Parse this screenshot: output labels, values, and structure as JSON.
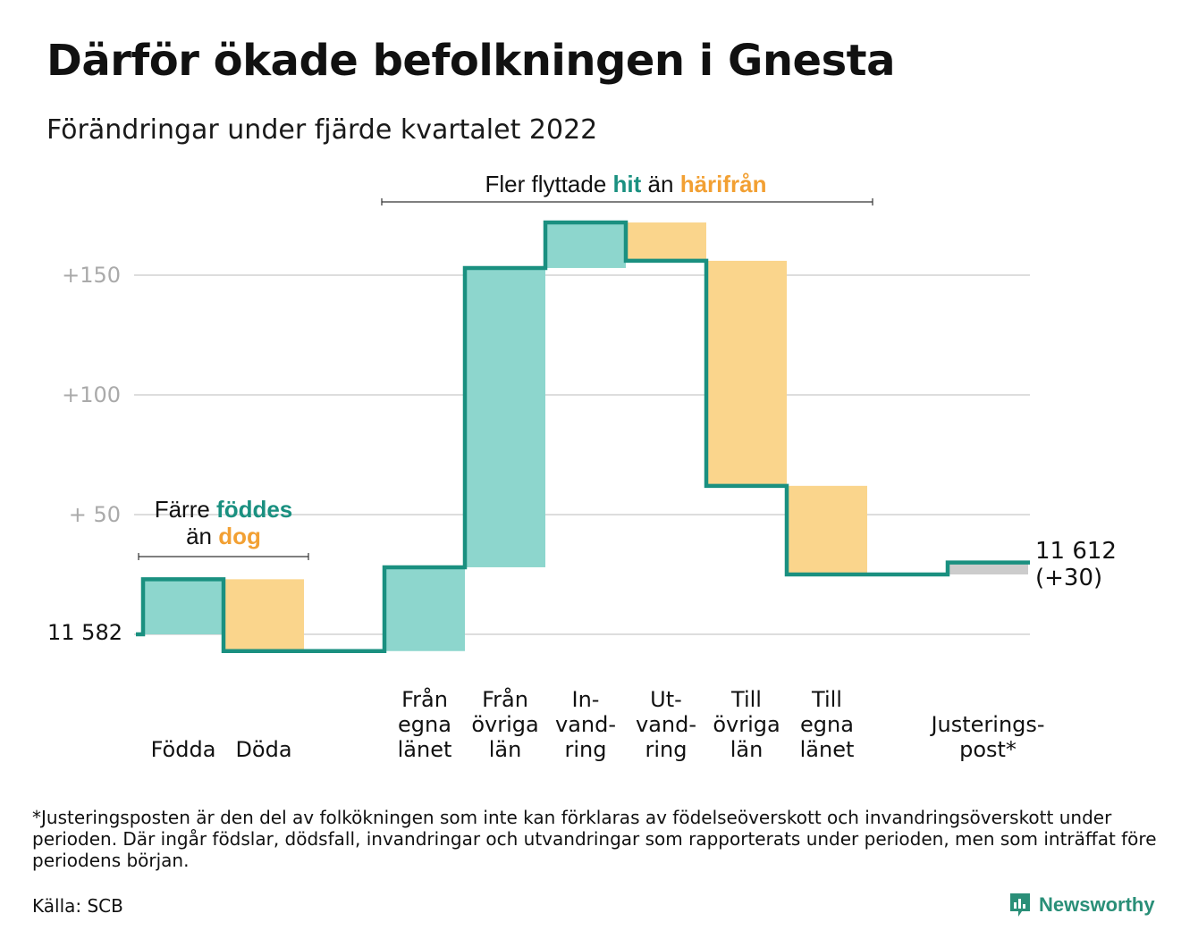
{
  "title": "Därför ökade befolkningen i Gnesta",
  "subtitle": "Förändringar under fjärde kvartalet 2022",
  "annotations": {
    "births_deaths": {
      "line1_prefix": "Färre ",
      "line1_highlight": "föddes",
      "line2_prefix": "än ",
      "line2_highlight": "dog"
    },
    "migration": {
      "prefix": "Fler flyttade ",
      "highlight1": "hit",
      "middle": " än ",
      "highlight2": "härifrån"
    }
  },
  "start_label": "11 582",
  "end_label_line1": "11 612",
  "end_label_line2": "(+30)",
  "footnote": "*Justeringsposten är den del av folkökningen som inte kan förklaras av födelseöverskott och invandringsöverskott under perioden. Där ingår födslar, dödsfall, invandringar och utvandringar som rapporterats under perioden, men som inträffat före periodens början.",
  "source": "Källa: SCB",
  "brand": "Newsworthy",
  "colors": {
    "increase": "#8dd6cd",
    "decrease": "#fad58c",
    "adjustment": "#cccccc",
    "line": "#1a9080",
    "teal_text": "#1a9080",
    "orange_text": "#f2a033",
    "grid": "#dddddd",
    "tick": "#aaaaaa"
  },
  "chart_data": {
    "type": "waterfall",
    "start_value": 11582,
    "end_value": 11612,
    "y_ticks": [
      {
        "value": 50,
        "label": "+ 50"
      },
      {
        "value": 100,
        "label": "+100"
      },
      {
        "value": 150,
        "label": "+150"
      }
    ],
    "steps": [
      {
        "label_lines": [
          "Födda"
        ],
        "change": 23,
        "kind": "increase"
      },
      {
        "label_lines": [
          "Döda"
        ],
        "change": -30,
        "kind": "decrease"
      },
      {
        "label_lines": [],
        "change": 0,
        "kind": "gap"
      },
      {
        "label_lines": [
          "Från",
          "egna",
          "länet"
        ],
        "change": 35,
        "kind": "increase"
      },
      {
        "label_lines": [
          "Från",
          "övriga",
          "län"
        ],
        "change": 125,
        "kind": "increase"
      },
      {
        "label_lines": [
          "In-",
          "vand-",
          "ring"
        ],
        "change": 19,
        "kind": "increase"
      },
      {
        "label_lines": [
          "Ut-",
          "vand-",
          "ring"
        ],
        "change": -16,
        "kind": "decrease"
      },
      {
        "label_lines": [
          "Till",
          "övriga",
          "län"
        ],
        "change": -94,
        "kind": "decrease"
      },
      {
        "label_lines": [
          "Till",
          "egna",
          "länet"
        ],
        "change": -37,
        "kind": "decrease"
      },
      {
        "label_lines": [],
        "change": 0,
        "kind": "gap"
      },
      {
        "label_lines": [
          "Justerings-",
          "post*"
        ],
        "change": 5,
        "kind": "adjustment"
      }
    ]
  }
}
